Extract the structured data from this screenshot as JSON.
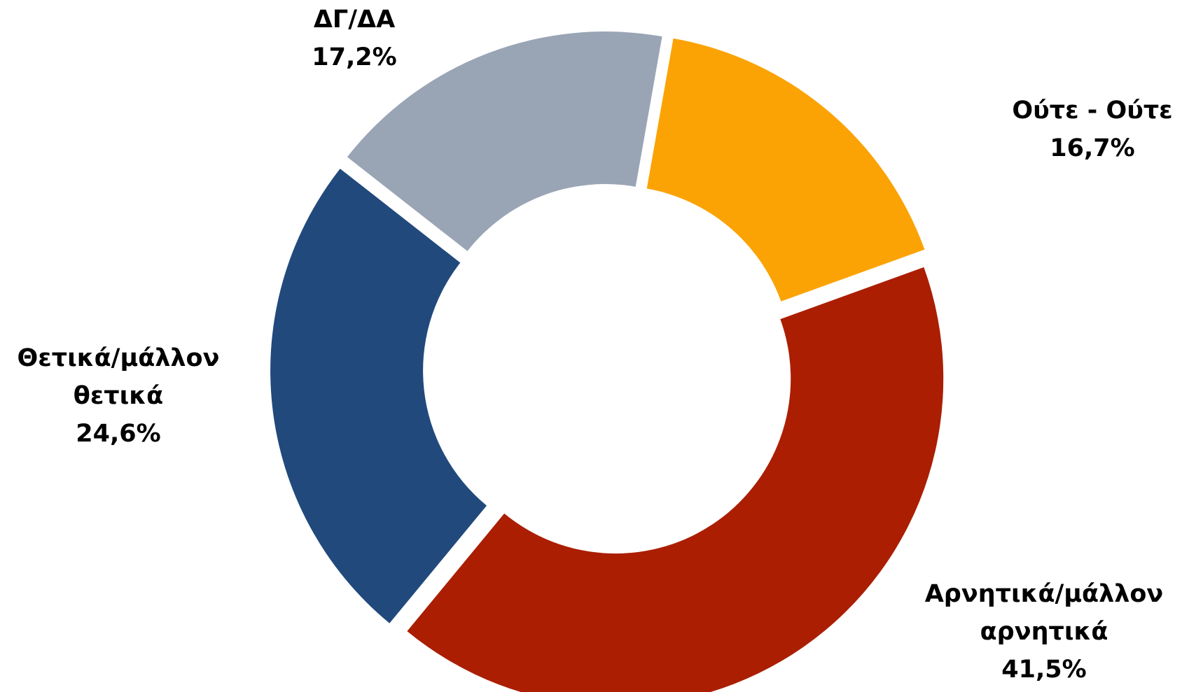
{
  "chart_data": {
    "type": "donut",
    "categories": [
      "Ούτε - Ούτε",
      "Αρνητικά/μάλλον αρνητικά",
      "Θετικά/μάλλον θετικά",
      "ΔΓ/ΔΑ"
    ],
    "values": [
      16.7,
      41.5,
      24.6,
      17.2
    ],
    "value_labels": [
      "16,7%",
      "41,5%",
      "24,6%",
      "17,2%"
    ],
    "colors": [
      "#fba304",
      "#ab1e02",
      "#21497c",
      "#99a5b5"
    ]
  }
}
